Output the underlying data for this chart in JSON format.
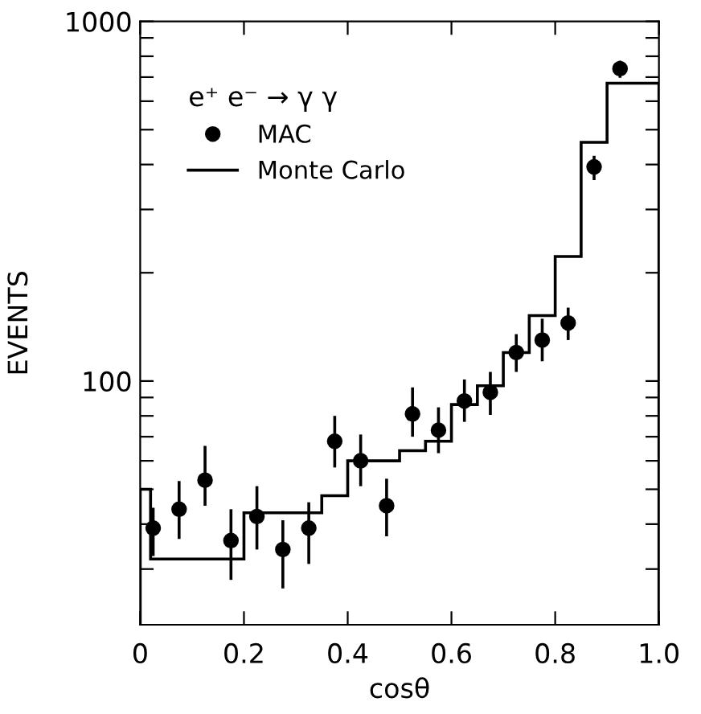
{
  "chart_data": {
    "type": "scatter",
    "xlabel": "cosθ",
    "ylabel": "EVENTS",
    "legend_title": "e⁺ e⁻ → γ γ",
    "legend": "top left",
    "log": "y",
    "grid": false,
    "xlim": [
      0,
      1.0
    ],
    "xticks": [
      0,
      0.2,
      0.4,
      0.6,
      0.8,
      {
        "value": 1.0,
        "label": "1.0"
      }
    ],
    "ylim": [
      21,
      1000
    ],
    "yticks": [
      {
        "value": 30,
        "label": null
      },
      {
        "value": 40,
        "label": null
      },
      {
        "value": 50,
        "label": null
      },
      {
        "value": 60,
        "label": null
      },
      {
        "value": 70,
        "label": null
      },
      {
        "value": 80,
        "label": null
      },
      {
        "value": 90,
        "label": null
      },
      100,
      {
        "value": 200,
        "label": null
      },
      {
        "value": 300,
        "label": null
      },
      {
        "value": 400,
        "label": null
      },
      {
        "value": 500,
        "label": null
      },
      {
        "value": 600,
        "label": null
      },
      {
        "value": 700,
        "label": null
      },
      {
        "value": 800,
        "label": null
      },
      {
        "value": 900,
        "label": null
      },
      1000
    ],
    "series": [
      {
        "name": "MAC",
        "marker": "circle",
        "color": "#000000",
        "x": [
          0.025,
          0.075,
          0.125,
          0.175,
          0.225,
          0.275,
          0.325,
          0.375,
          0.425,
          0.475,
          0.525,
          0.575,
          0.625,
          0.675,
          0.725,
          0.775,
          0.825,
          0.875,
          0.925
        ],
        "values": [
          39,
          44,
          53,
          36,
          42,
          34,
          39,
          68,
          60,
          45,
          81,
          73,
          88,
          93,
          120,
          130,
          145,
          394,
          739
        ],
        "errors": [
          [
            32.6,
            44.4
          ],
          [
            36.4,
            52.7
          ],
          [
            45,
            66
          ],
          [
            28,
            44
          ],
          [
            34,
            51
          ],
          [
            26.5,
            41
          ],
          [
            31,
            46
          ],
          [
            57.5,
            80
          ],
          [
            51,
            71
          ],
          [
            37,
            53.5
          ],
          [
            70,
            96
          ],
          [
            63,
            84.5
          ],
          [
            77,
            101
          ],
          [
            80.5,
            106
          ],
          [
            106,
            135
          ],
          [
            113.5,
            149
          ],
          [
            130,
            160
          ],
          [
            362,
            423
          ],
          [
            697,
            778
          ]
        ]
      },
      {
        "name": "Monte Carlo",
        "type": "histogram",
        "color": "#000000",
        "bins": [
          0,
          0.02,
          0.2,
          0.35,
          0.4,
          0.5,
          0.55,
          0.6,
          0.65,
          0.7,
          0.75,
          0.8,
          0.85,
          0.9,
          1.0
        ],
        "values": [
          50,
          32,
          43,
          48,
          60,
          64,
          68,
          86,
          97,
          120,
          152,
          222,
          461,
          673
        ]
      }
    ]
  }
}
